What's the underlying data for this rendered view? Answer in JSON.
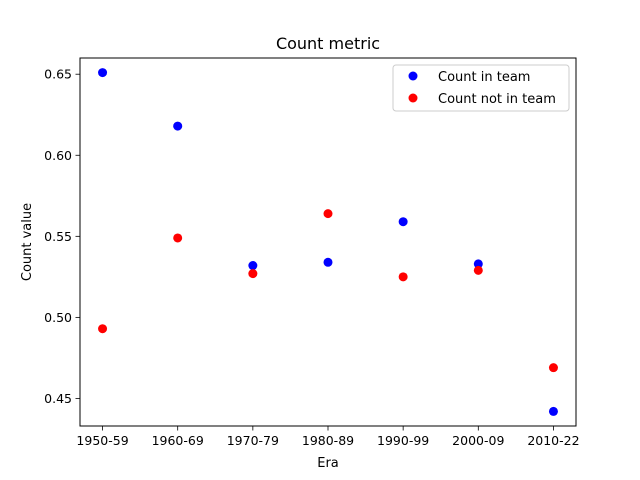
{
  "chart_data": {
    "type": "scatter",
    "title": "Count metric",
    "xlabel": "Era",
    "ylabel": "Count value",
    "categories": [
      "1950-59",
      "1960-69",
      "1970-79",
      "1980-89",
      "1990-99",
      "2000-09",
      "2010-22"
    ],
    "ylim": [
      0.433,
      0.66
    ],
    "yticks": [
      0.45,
      0.5,
      0.55,
      0.6,
      0.65
    ],
    "ytick_labels": [
      "0.45",
      "0.50",
      "0.55",
      "0.60",
      "0.65"
    ],
    "grid": false,
    "legend_position": "top-right",
    "series": [
      {
        "name": "Count in team",
        "color": "#0000ff",
        "values": [
          0.651,
          0.618,
          0.532,
          0.534,
          0.559,
          0.533,
          0.442
        ]
      },
      {
        "name": "Count not in team",
        "color": "#ff0000",
        "values": [
          0.493,
          0.549,
          0.527,
          0.564,
          0.525,
          0.529,
          0.469
        ]
      }
    ]
  }
}
